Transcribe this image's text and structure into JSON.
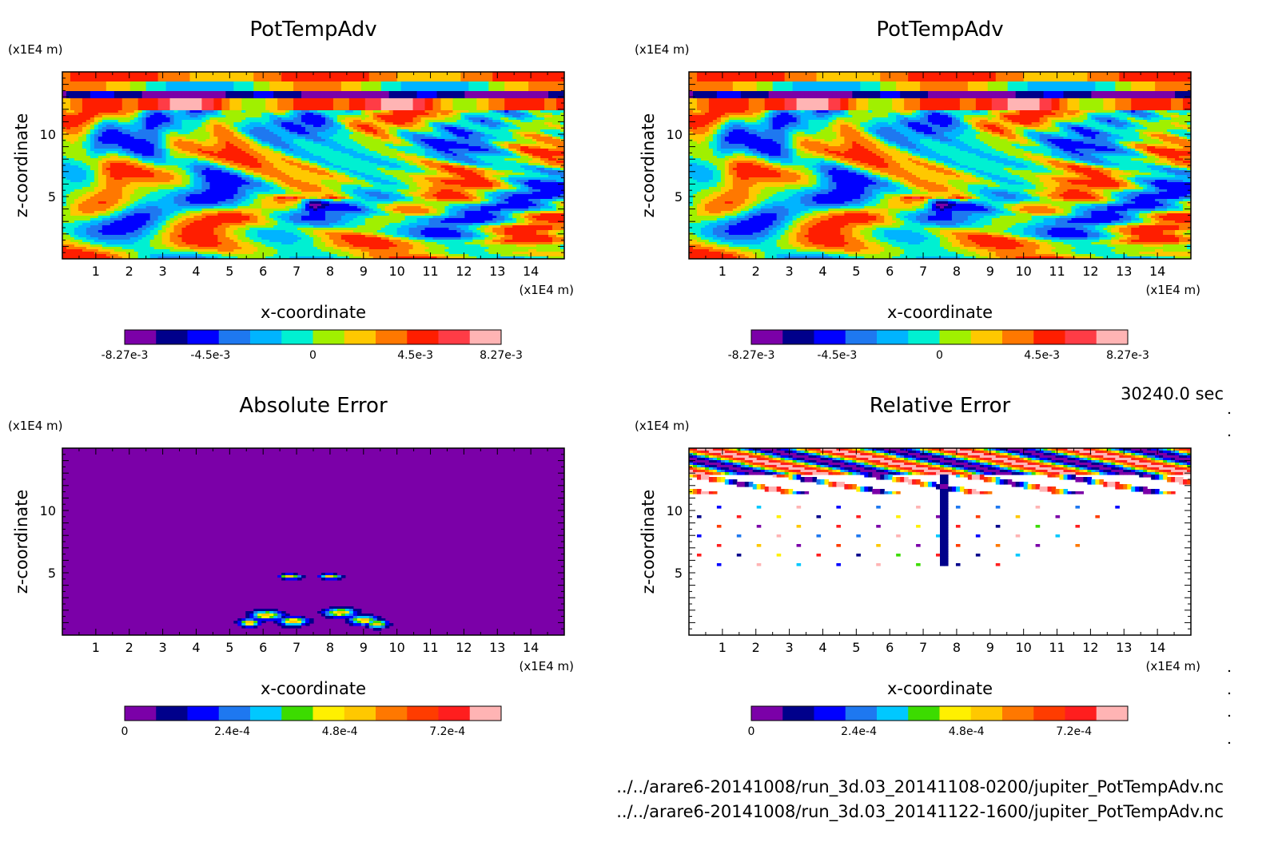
{
  "time_label": "30240.0 sec",
  "file_paths": [
    "../../arare6-20141008/run_3d.03_20141108-0200/jupiter_PotTempAdv.nc",
    "../../arare6-20141008/run_3d.03_20141122-1600/jupiter_PotTempAdv.nc"
  ],
  "colors": {
    "field_palette": [
      "#7b00a8",
      "#00008b",
      "#0000ff",
      "#1e78f0",
      "#00b4ff",
      "#00f0d2",
      "#a0f000",
      "#ffc800",
      "#ff7800",
      "#ff1e00",
      "#ff3c46",
      "#ffb4b4"
    ],
    "error_palette": [
      "#7b00a8",
      "#00008b",
      "#0000ff",
      "#1e78f0",
      "#00c8ff",
      "#3cdc00",
      "#fff000",
      "#ffc800",
      "#ff7800",
      "#ff3c00",
      "#ff1e1e",
      "#ffb4b4"
    ]
  },
  "chart_data": [
    {
      "type": "heatmap",
      "title": "PotTempAdv",
      "xlabel": "x-coordinate",
      "ylabel": "z-coordinate",
      "x_unit": "(x1E4 m)",
      "y_unit": "(x1E4 m)",
      "xlim": [
        0,
        15
      ],
      "ylim": [
        0,
        15
      ],
      "x_ticks": [
        "1",
        "2",
        "3",
        "4",
        "5",
        "6",
        "7",
        "8",
        "9",
        "10",
        "11",
        "12",
        "13",
        "14"
      ],
      "y_ticks": [
        "5",
        "10"
      ],
      "colorbar": {
        "labels": [
          "-8.27e-3",
          "-4.5e-3",
          "0",
          "4.5e-3",
          "8.27e-3"
        ],
        "range": [
          -0.00827,
          0.00827
        ]
      }
    },
    {
      "type": "heatmap",
      "title": "PotTempAdv",
      "xlabel": "x-coordinate",
      "ylabel": "z-coordinate",
      "x_unit": "(x1E4 m)",
      "y_unit": "(x1E4 m)",
      "xlim": [
        0,
        15
      ],
      "ylim": [
        0,
        15
      ],
      "x_ticks": [
        "1",
        "2",
        "3",
        "4",
        "5",
        "6",
        "7",
        "8",
        "9",
        "10",
        "11",
        "12",
        "13",
        "14"
      ],
      "y_ticks": [
        "5",
        "10"
      ],
      "colorbar": {
        "labels": [
          "-8.27e-3",
          "-4.5e-3",
          "0",
          "4.5e-3",
          "8.27e-3"
        ],
        "range": [
          -0.00827,
          0.00827
        ]
      }
    },
    {
      "type": "heatmap",
      "title": "Absolute Error",
      "xlabel": "x-coordinate",
      "ylabel": "z-coordinate",
      "x_unit": "(x1E4 m)",
      "y_unit": "(x1E4 m)",
      "xlim": [
        0,
        15
      ],
      "ylim": [
        0,
        15
      ],
      "x_ticks": [
        "1",
        "2",
        "3",
        "4",
        "5",
        "6",
        "7",
        "8",
        "9",
        "10",
        "11",
        "12",
        "13",
        "14"
      ],
      "y_ticks": [
        "5",
        "10"
      ],
      "colorbar": {
        "labels": [
          "0",
          "2.4e-4",
          "4.8e-4",
          "7.2e-4"
        ],
        "range": [
          0,
          0.00084
        ]
      }
    },
    {
      "type": "heatmap",
      "title": "Relative Error",
      "xlabel": "x-coordinate",
      "ylabel": "z-coordinate",
      "x_unit": "(x1E4 m)",
      "y_unit": "(x1E4 m)",
      "xlim": [
        0,
        15
      ],
      "ylim": [
        0,
        15
      ],
      "x_ticks": [
        "1",
        "2",
        "3",
        "4",
        "5",
        "6",
        "7",
        "8",
        "9",
        "10",
        "11",
        "12",
        "13",
        "14"
      ],
      "y_ticks": [
        "5",
        "10"
      ],
      "colorbar": {
        "labels": [
          "0",
          "2.4e-4",
          "4.8e-4",
          "7.2e-4"
        ],
        "range": [
          0,
          0.00084
        ]
      }
    }
  ]
}
